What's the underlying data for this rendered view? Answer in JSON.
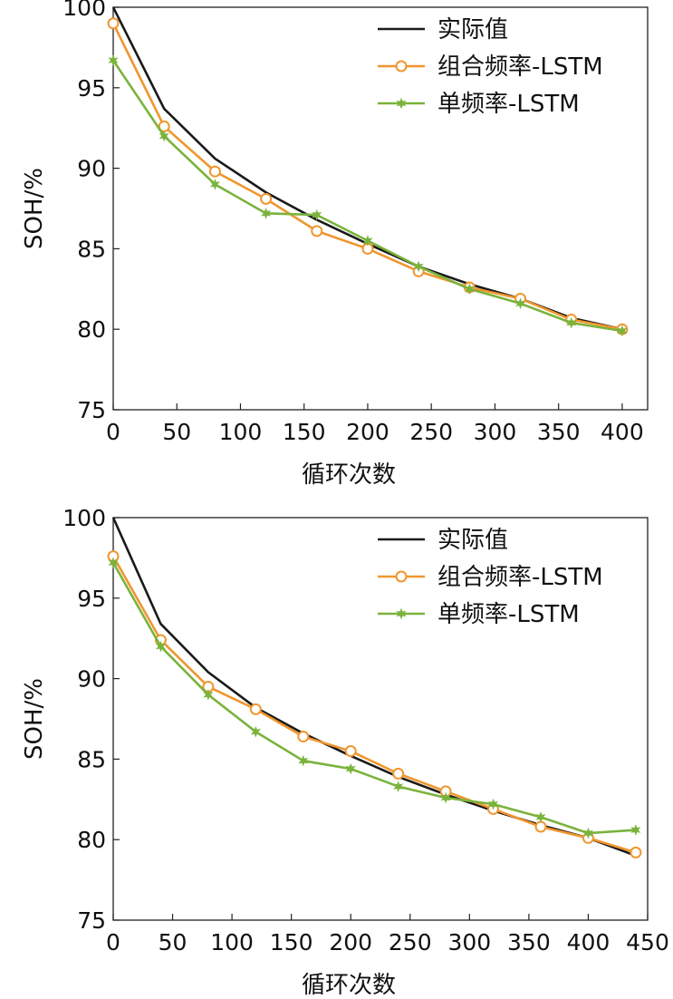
{
  "chart_data": [
    {
      "type": "line",
      "xlabel": "循环次数",
      "ylabel": "SOH/%",
      "xlim": [
        0,
        420
      ],
      "ylim": [
        75,
        100
      ],
      "xticks": [
        "0",
        "50",
        "100",
        "150",
        "200",
        "250",
        "300",
        "350",
        "400"
      ],
      "yticks": [
        "75",
        "80",
        "85",
        "90",
        "95",
        "100"
      ],
      "legend_position": "top-right",
      "grid": false,
      "series": [
        {
          "name": "实际值",
          "color": "#1a1a1a",
          "marker": "none",
          "x": [
            0,
            40,
            80,
            120,
            160,
            200,
            240,
            280,
            320,
            360,
            400
          ],
          "y": [
            100,
            93.7,
            90.6,
            88.5,
            86.8,
            85.3,
            83.9,
            82.8,
            81.9,
            80.7,
            80.0
          ]
        },
        {
          "name": "组合频率-LSTM",
          "color": "#f0962e",
          "marker": "circle",
          "x": [
            0,
            40,
            80,
            120,
            160,
            200,
            240,
            280,
            320,
            360,
            400
          ],
          "y": [
            99.0,
            92.6,
            89.8,
            88.1,
            86.1,
            85.0,
            83.6,
            82.6,
            81.9,
            80.6,
            80.0
          ]
        },
        {
          "name": "单频率-LSTM",
          "color": "#7ab33c",
          "marker": "star",
          "x": [
            0,
            40,
            80,
            120,
            160,
            200,
            240,
            280,
            320,
            360,
            400
          ],
          "y": [
            96.7,
            92.0,
            89.0,
            87.2,
            87.1,
            85.5,
            83.9,
            82.5,
            81.6,
            80.4,
            79.9
          ]
        }
      ]
    },
    {
      "type": "line",
      "xlabel": "循环次数",
      "ylabel": "SOH/%",
      "xlim": [
        0,
        450
      ],
      "ylim": [
        75,
        100
      ],
      "xticks": [
        "0",
        "50",
        "100",
        "150",
        "200",
        "250",
        "300",
        "350",
        "400",
        "450"
      ],
      "yticks": [
        "75",
        "80",
        "85",
        "90",
        "95",
        "100"
      ],
      "legend_position": "top-right",
      "grid": false,
      "series": [
        {
          "name": "实际值",
          "color": "#1a1a1a",
          "marker": "none",
          "x": [
            0,
            40,
            80,
            120,
            160,
            200,
            240,
            280,
            320,
            360,
            400,
            440
          ],
          "y": [
            100,
            93.4,
            90.4,
            88.2,
            86.6,
            85.2,
            83.9,
            82.8,
            81.8,
            80.9,
            80.1,
            79.0
          ]
        },
        {
          "name": "组合频率-LSTM",
          "color": "#f0962e",
          "marker": "circle",
          "x": [
            0,
            40,
            80,
            120,
            160,
            200,
            240,
            280,
            320,
            360,
            400,
            440
          ],
          "y": [
            97.6,
            92.4,
            89.5,
            88.1,
            86.4,
            85.5,
            84.1,
            83.0,
            81.9,
            80.8,
            80.1,
            79.2
          ]
        },
        {
          "name": "单频率-LSTM",
          "color": "#7ab33c",
          "marker": "star",
          "x": [
            0,
            40,
            80,
            120,
            160,
            200,
            240,
            280,
            320,
            360,
            400,
            440
          ],
          "y": [
            97.2,
            92.0,
            89.0,
            86.7,
            84.9,
            84.4,
            83.3,
            82.6,
            82.2,
            81.4,
            80.4,
            80.6
          ]
        }
      ]
    }
  ]
}
